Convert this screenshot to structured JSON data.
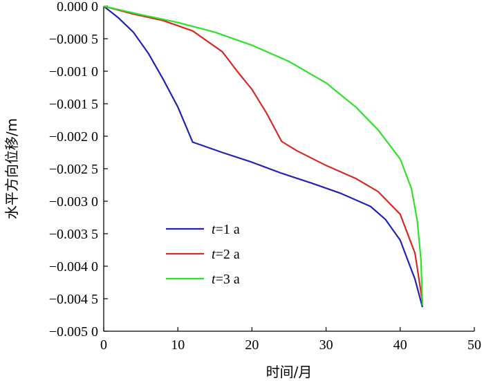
{
  "chart_data": {
    "type": "line",
    "xlabel": "时间/月",
    "ylabel": "水平方向位移/m",
    "xlim": [
      0,
      50
    ],
    "ylim": [
      -0.005,
      0.0
    ],
    "x_ticks": [
      0,
      10,
      20,
      30,
      40,
      50
    ],
    "x_tick_labels": [
      "0",
      "10",
      "20",
      "30",
      "40",
      "50"
    ],
    "y_ticks": [
      0.0,
      -0.0005,
      -0.001,
      -0.0015,
      -0.002,
      -0.0025,
      -0.003,
      -0.0035,
      -0.004,
      -0.0045,
      -0.005
    ],
    "y_tick_labels": [
      "0.000 0",
      "−0.000 5",
      "−0.001 0",
      "−0.001 5",
      "−0.002 0",
      "−0.002 5",
      "−0.003 0",
      "−0.003 5",
      "−0.004 0",
      "−0.004 5",
      "−0.005 0"
    ],
    "grid": false,
    "legend_position": "lower-left",
    "series": [
      {
        "name": "t=1 a",
        "legend_var": "t",
        "legend_rest": "=1 a",
        "color": "#1f22b4",
        "points": [
          [
            0,
            0
          ],
          [
            2,
            -0.00018
          ],
          [
            4,
            -0.0004
          ],
          [
            6,
            -0.00072
          ],
          [
            8,
            -0.00112
          ],
          [
            10,
            -0.00155
          ],
          [
            11,
            -0.00182
          ],
          [
            12,
            -0.00209
          ],
          [
            16,
            -0.00225
          ],
          [
            20,
            -0.0024
          ],
          [
            24,
            -0.00257
          ],
          [
            28,
            -0.00272
          ],
          [
            32,
            -0.00288
          ],
          [
            36,
            -0.00308
          ],
          [
            38,
            -0.00328
          ],
          [
            40,
            -0.0036
          ],
          [
            42,
            -0.0042
          ],
          [
            43,
            -0.00463
          ]
        ]
      },
      {
        "name": "t=2 a",
        "legend_var": "t",
        "legend_rest": "=2 a",
        "color": "#d42a24",
        "points": [
          [
            0,
            0
          ],
          [
            4,
            -0.00012
          ],
          [
            8,
            -0.00022
          ],
          [
            12,
            -0.00038
          ],
          [
            16,
            -0.0007
          ],
          [
            18,
            -0.001
          ],
          [
            20,
            -0.00128
          ],
          [
            22,
            -0.00165
          ],
          [
            24,
            -0.00208
          ],
          [
            26,
            -0.00222
          ],
          [
            30,
            -0.00245
          ],
          [
            34,
            -0.00265
          ],
          [
            37,
            -0.00285
          ],
          [
            40,
            -0.0032
          ],
          [
            42,
            -0.0038
          ],
          [
            43,
            -0.00455
          ]
        ]
      },
      {
        "name": "t=3 a",
        "legend_var": "t",
        "legend_rest": "=3 a",
        "color": "#2ee12a",
        "points": [
          [
            0,
            0
          ],
          [
            5,
            -0.00013
          ],
          [
            10,
            -0.00025
          ],
          [
            15,
            -0.0004
          ],
          [
            20,
            -0.0006
          ],
          [
            25,
            -0.00085
          ],
          [
            30,
            -0.00118
          ],
          [
            34,
            -0.00155
          ],
          [
            37,
            -0.0019
          ],
          [
            40,
            -0.00235
          ],
          [
            41.5,
            -0.0028
          ],
          [
            42.3,
            -0.0033
          ],
          [
            42.8,
            -0.0039
          ],
          [
            43,
            -0.0046
          ]
        ]
      }
    ]
  }
}
